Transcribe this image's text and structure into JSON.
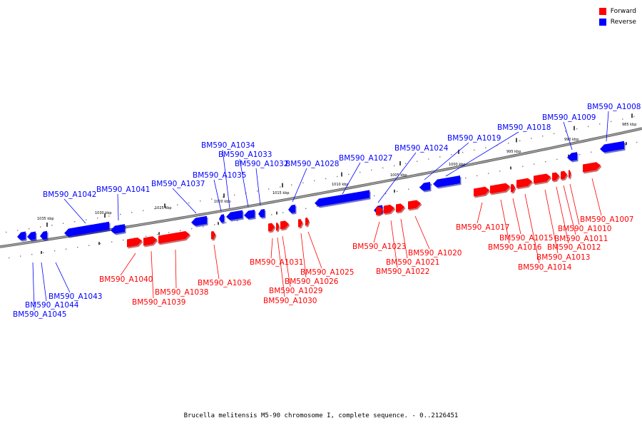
{
  "title": "Brucella melitensis M5-90 chromosome I, complete sequence. - 0..2126451",
  "legend": [
    {
      "label": "Forward",
      "color": "#ff0000"
    },
    {
      "label": "Reverse",
      "color": "#0000ff"
    }
  ],
  "colors": {
    "forward": "#ff0000",
    "reverse": "#0000ff",
    "backbone": "#808080"
  },
  "ticks": [
    {
      "kbp": 1035,
      "label": "1035 kbp"
    },
    {
      "kbp": 1030,
      "label": "1030 kbp"
    },
    {
      "kbp": 1025,
      "label": "1025 kbp"
    },
    {
      "kbp": 1020,
      "label": "1020 kbp"
    },
    {
      "kbp": 1015,
      "label": "1015 kbp"
    },
    {
      "kbp": 1010,
      "label": "1010 kbp"
    },
    {
      "kbp": 1005,
      "label": "1005 kbp"
    },
    {
      "kbp": 1000,
      "label": "1000 kbp"
    },
    {
      "kbp": 995,
      "label": "995 kbp"
    },
    {
      "kbp": 990,
      "label": "990 kbp"
    },
    {
      "kbp": 985,
      "label": "985 kbp"
    }
  ],
  "genes": [
    {
      "name": "BM590_A1045",
      "strand": "reverse"
    },
    {
      "name": "BM590_A1044",
      "strand": "reverse"
    },
    {
      "name": "BM590_A1043",
      "strand": "reverse"
    },
    {
      "name": "BM590_A1042",
      "strand": "reverse"
    },
    {
      "name": "BM590_A1041",
      "strand": "reverse"
    },
    {
      "name": "BM590_A1040",
      "strand": "forward"
    },
    {
      "name": "BM590_A1039",
      "strand": "forward"
    },
    {
      "name": "BM590_A1038",
      "strand": "forward"
    },
    {
      "name": "BM590_A1037",
      "strand": "reverse"
    },
    {
      "name": "BM590_A1036",
      "strand": "forward"
    },
    {
      "name": "BM590_A1035",
      "strand": "reverse"
    },
    {
      "name": "BM590_A1034",
      "strand": "reverse"
    },
    {
      "name": "BM590_A1033",
      "strand": "reverse"
    },
    {
      "name": "BM590_A1032",
      "strand": "reverse"
    },
    {
      "name": "BM590_A1031",
      "strand": "forward"
    },
    {
      "name": "BM590_A1030",
      "strand": "forward"
    },
    {
      "name": "BM590_A1029",
      "strand": "forward"
    },
    {
      "name": "BM590_A1028",
      "strand": "reverse"
    },
    {
      "name": "BM590_A1026",
      "strand": "forward"
    },
    {
      "name": "BM590_A1025",
      "strand": "forward"
    },
    {
      "name": "BM590_A1027",
      "strand": "reverse"
    },
    {
      "name": "BM590_A1024",
      "strand": "reverse"
    },
    {
      "name": "BM590_A1023",
      "strand": "forward"
    },
    {
      "name": "BM590_A1022",
      "strand": "forward"
    },
    {
      "name": "BM590_A1021",
      "strand": "forward"
    },
    {
      "name": "BM590_A1020",
      "strand": "forward"
    },
    {
      "name": "BM590_A1019",
      "strand": "reverse"
    },
    {
      "name": "BM590_A1018",
      "strand": "reverse"
    },
    {
      "name": "BM590_A1017",
      "strand": "forward"
    },
    {
      "name": "BM590_A1016",
      "strand": "forward"
    },
    {
      "name": "BM590_A1015",
      "strand": "forward"
    },
    {
      "name": "BM590_A1014",
      "strand": "forward"
    },
    {
      "name": "BM590_A1013",
      "strand": "forward"
    },
    {
      "name": "BM590_A1012",
      "strand": "forward"
    },
    {
      "name": "BM590_A1011",
      "strand": "forward"
    },
    {
      "name": "BM590_A1010",
      "strand": "forward"
    },
    {
      "name": "BM590_A1007",
      "strand": "forward"
    },
    {
      "name": "BM590_A1009",
      "strand": "reverse"
    },
    {
      "name": "BM590_A1008",
      "strand": "reverse"
    }
  ]
}
